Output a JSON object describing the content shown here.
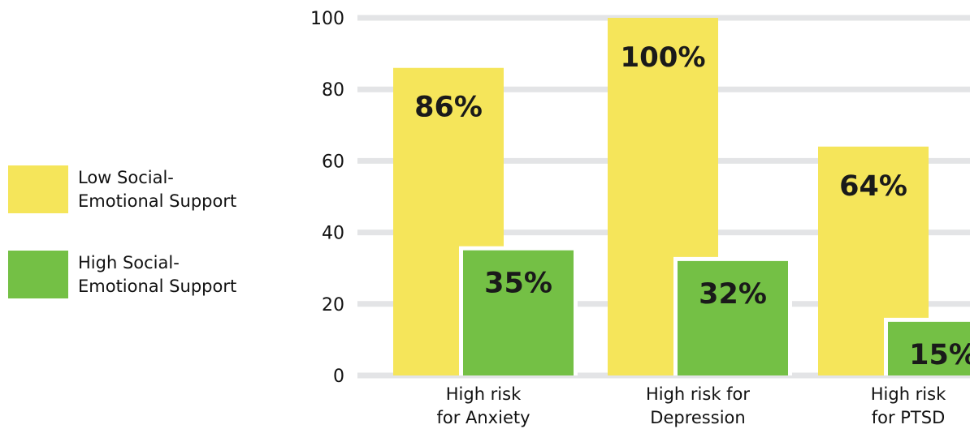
{
  "legend": {
    "items": [
      {
        "label_line1": "Low Social-",
        "label_line2": "Emotional Support",
        "color": "#f5e55a"
      },
      {
        "label_line1": "High Social-",
        "label_line2": "Emotional Support",
        "color": "#74c045"
      }
    ]
  },
  "chart_data": {
    "type": "bar",
    "categories": [
      [
        "High risk",
        "for Anxiety"
      ],
      [
        "High risk for",
        "Depression"
      ],
      [
        "High risk",
        "for PTSD"
      ]
    ],
    "series": [
      {
        "name": "Low Social-Emotional Support",
        "values": [
          86,
          100,
          64
        ],
        "labels": [
          "86%",
          "100%",
          "64%"
        ],
        "color": "#f5e55a"
      },
      {
        "name": "High Social-Emotional Support",
        "values": [
          35,
          32,
          15
        ],
        "labels": [
          "35%",
          "32%",
          "15%"
        ],
        "color": "#74c045"
      }
    ],
    "yticks": [
      "0",
      "20",
      "40",
      "60",
      "80",
      "100"
    ],
    "ylim": [
      0,
      100
    ],
    "grid": true,
    "legend_position": "left",
    "xlabel": "",
    "ylabel": "",
    "title": ""
  }
}
